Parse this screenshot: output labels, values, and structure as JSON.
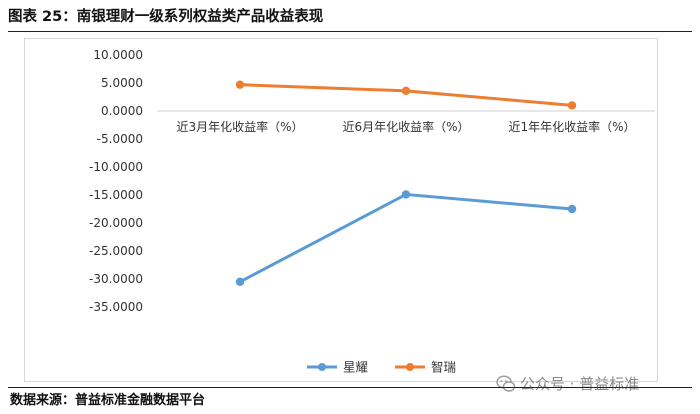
{
  "figure": {
    "title": "图表 25：南银理财一级系列权益类产品收益表现",
    "source": "数据来源：普益标准金融数据平台",
    "watermark": "公众号 · 普益标准"
  },
  "chart_data": {
    "type": "line",
    "categories": [
      "近3月年化收益率（%）",
      "近6月年化收益率（%）",
      "近1年年化收益率（%）"
    ],
    "series": [
      {
        "name": "星耀",
        "values": [
          -30.5,
          -14.9,
          -17.5
        ],
        "color": "#5b9bd5"
      },
      {
        "name": "智瑞",
        "values": [
          4.7,
          3.6,
          1.0
        ],
        "color": "#ed7d31"
      }
    ],
    "ylim": [
      -40,
      10
    ],
    "yticks": [
      "10.0000",
      "5.0000",
      "0.0000",
      "-5.0000",
      "-10.0000",
      "-15.0000",
      "-20.0000",
      "-25.0000",
      "-30.0000",
      "-35.0000"
    ],
    "ytick_values": [
      10,
      5,
      0,
      -5,
      -10,
      -15,
      -20,
      -25,
      -30,
      -35
    ],
    "grid": false,
    "legend_position": "bottom"
  }
}
